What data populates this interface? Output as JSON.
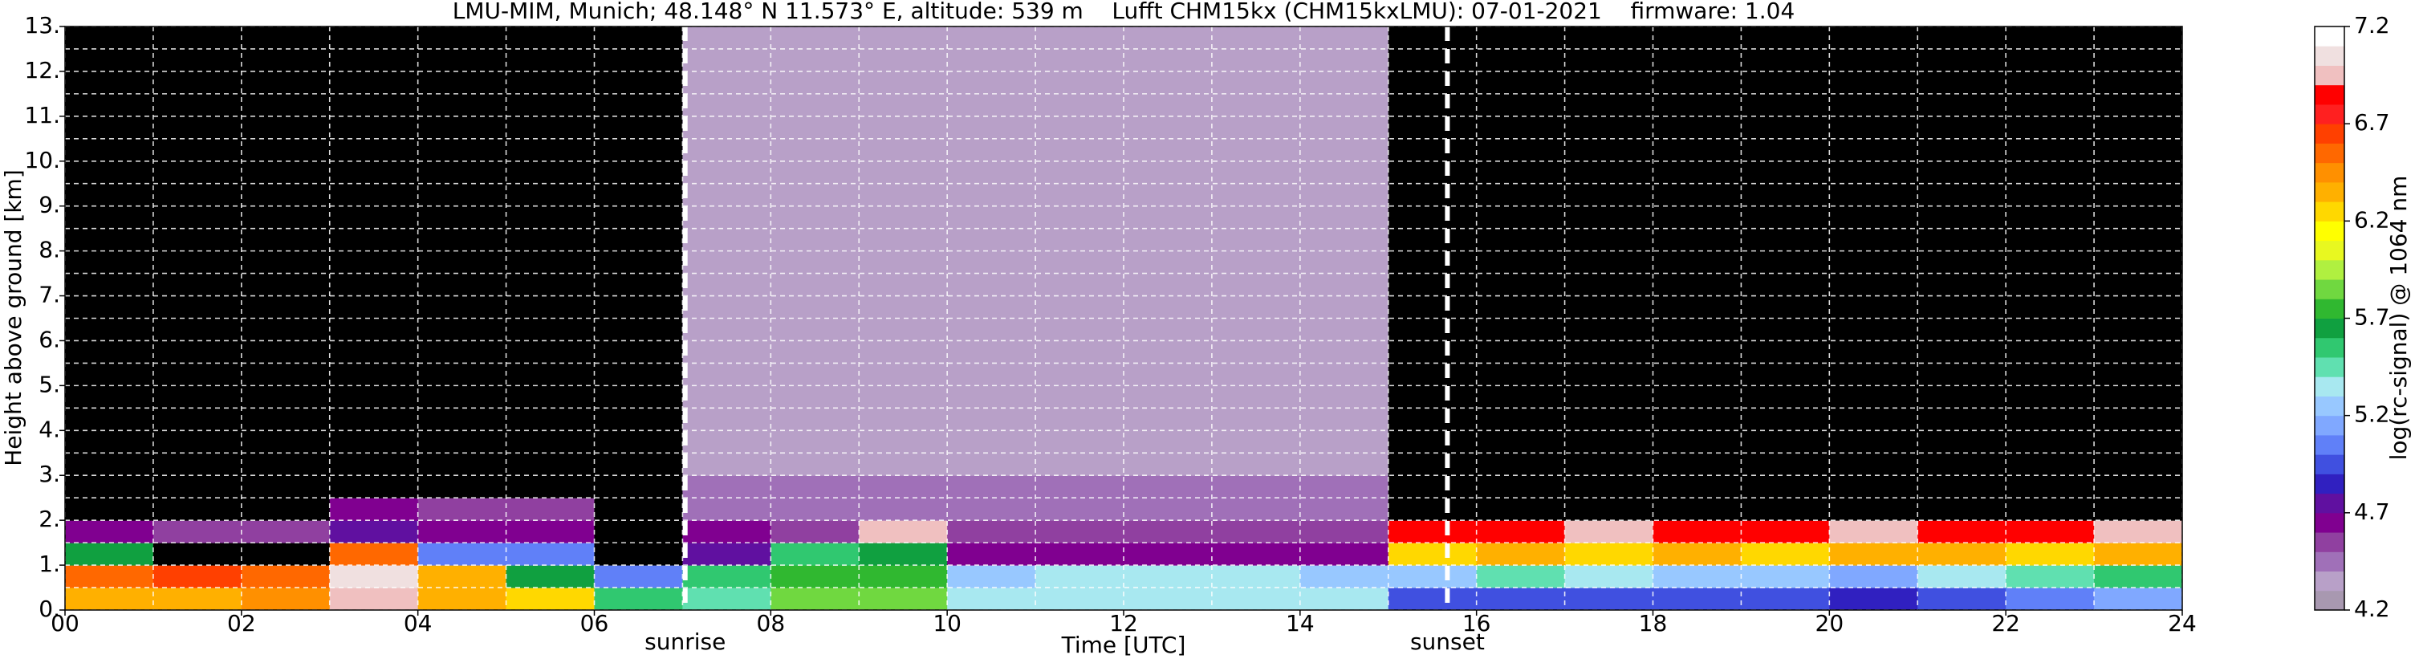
{
  "chart_data": {
    "type": "heatmap",
    "title": "LMU-MIM, Munich; 48.148° N 11.573° E, altitude: 539 m    Lufft CHM15kx (CHM15kxLMU): 07-01-2021    firmware: 1.04",
    "xlabel": "Time [UTC]",
    "ylabel": "Height above ground [km]",
    "colorbar_label": "log(rc-signal) @ 1064 nm",
    "xlim": [
      0,
      24
    ],
    "ylim": [
      0,
      13
    ],
    "xticks": [
      {
        "value": 0,
        "label": "00"
      },
      {
        "value": 2,
        "label": "02"
      },
      {
        "value": 4,
        "label": "04"
      },
      {
        "value": 6,
        "label": "06"
      },
      {
        "value": 8,
        "label": "08"
      },
      10,
      12,
      14,
      16,
      18,
      20,
      22,
      24
    ],
    "xminorticks": [
      1,
      3,
      5,
      7,
      9,
      11,
      13,
      15,
      17,
      19,
      21,
      23
    ],
    "yticks": [
      {
        "value": 0,
        "label": "0."
      },
      {
        "value": 1,
        "label": "1."
      },
      {
        "value": 2,
        "label": "2."
      },
      {
        "value": 3,
        "label": "3."
      },
      {
        "value": 4,
        "label": "4."
      },
      {
        "value": 5,
        "label": "5."
      },
      {
        "value": 6,
        "label": "6."
      },
      {
        "value": 7,
        "label": "7."
      },
      {
        "value": 8,
        "label": "8."
      },
      {
        "value": 9,
        "label": "9."
      },
      {
        "value": 10,
        "label": "10."
      },
      {
        "value": 11,
        "label": "11."
      },
      {
        "value": 12,
        "label": "12."
      },
      {
        "value": 13,
        "label": "13."
      }
    ],
    "yminorticks": [
      0.5,
      1.5,
      2.5,
      3.5,
      4.5,
      5.5,
      6.5,
      7.5,
      8.5,
      9.5,
      10.5,
      11.5,
      12.5
    ],
    "grid": true,
    "grid_color": "#ffffff",
    "clim": [
      4.2,
      7.2
    ],
    "cticks": [
      4.2,
      4.7,
      5.2,
      5.7,
      6.2,
      6.7,
      7.2
    ],
    "under_color": "#000000",
    "colors": [
      "#a898b0",
      "#b8a0c8",
      "#a070b8",
      "#9040a0",
      "#800090",
      "#6010a0",
      "#3020c0",
      "#4050e0",
      "#6080f8",
      "#80a8ff",
      "#98c8ff",
      "#a8e8f0",
      "#60e0b0",
      "#30c870",
      "#10a040",
      "#30b830",
      "#70d840",
      "#b0f040",
      "#e8f820",
      "#ffff00",
      "#ffd800",
      "#ffb000",
      "#ff9000",
      "#ff6800",
      "#ff4000",
      "#ff2020",
      "#ff0000",
      "#f0c0c0",
      "#f0e0e0",
      "#ffffff"
    ],
    "xbins": [
      0,
      1,
      2,
      3,
      4,
      5,
      6,
      7,
      8,
      9,
      10,
      11,
      12,
      13,
      14,
      15,
      16,
      17,
      18,
      19,
      20,
      21,
      22,
      23,
      24
    ],
    "ybins": [
      0,
      0.5,
      1,
      1.5,
      2,
      2.5,
      3,
      4,
      6,
      8,
      10,
      13
    ],
    "z": [
      [
        6.3,
        6.3,
        6.4,
        6.9,
        6.3,
        6.2,
        5.5,
        5.4,
        5.8,
        5.8,
        5.3,
        5.3,
        5.3,
        5.3,
        5.3,
        4.9,
        4.9,
        4.9,
        4.9,
        4.9,
        4.8,
        4.9,
        5.0,
        5.1
      ],
      [
        6.5,
        6.6,
        6.5,
        7.0,
        6.3,
        5.6,
        5.0,
        5.5,
        5.7,
        5.7,
        5.2,
        5.3,
        5.3,
        5.3,
        5.2,
        5.2,
        5.4,
        5.3,
        5.2,
        5.2,
        5.1,
        5.3,
        5.4,
        5.5
      ],
      [
        5.6,
        4.0,
        4.0,
        6.5,
        5.0,
        5.0,
        4.0,
        4.7,
        5.5,
        5.6,
        4.6,
        4.6,
        4.6,
        4.6,
        4.6,
        6.2,
        6.3,
        6.2,
        6.3,
        6.2,
        6.3,
        6.3,
        6.2,
        6.3
      ],
      [
        4.6,
        4.5,
        4.5,
        4.7,
        4.6,
        4.6,
        4.0,
        4.6,
        4.5,
        6.9,
        4.5,
        4.5,
        4.5,
        4.5,
        4.5,
        6.8,
        6.8,
        6.9,
        6.8,
        6.8,
        6.9,
        6.8,
        6.8,
        6.9
      ],
      [
        4.0,
        4.0,
        4.0,
        4.6,
        4.5,
        4.5,
        4.0,
        4.4,
        4.4,
        4.4,
        4.4,
        4.4,
        4.4,
        4.4,
        4.4,
        4.0,
        4.0,
        4.0,
        4.0,
        4.0,
        4.0,
        4.0,
        4.0,
        4.0
      ],
      [
        3.9,
        3.9,
        3.9,
        3.9,
        3.9,
        3.9,
        4.0,
        4.4,
        4.4,
        4.4,
        4.4,
        4.4,
        4.4,
        4.4,
        4.4,
        3.9,
        3.9,
        3.9,
        3.9,
        3.9,
        3.9,
        3.9,
        3.9,
        3.9
      ],
      [
        3.9,
        3.9,
        3.9,
        3.9,
        3.9,
        3.9,
        4.0,
        4.3,
        4.3,
        4.3,
        4.3,
        4.3,
        4.3,
        4.3,
        4.3,
        3.9,
        3.9,
        3.9,
        3.9,
        3.9,
        3.9,
        3.9,
        3.9,
        3.9
      ],
      [
        3.9,
        3.9,
        3.9,
        3.9,
        3.9,
        3.9,
        4.0,
        4.3,
        4.3,
        4.3,
        4.3,
        4.3,
        4.3,
        4.3,
        4.3,
        3.9,
        3.9,
        3.9,
        3.9,
        3.9,
        3.9,
        3.9,
        3.9,
        3.9
      ],
      [
        3.9,
        3.9,
        3.9,
        3.9,
        3.9,
        3.9,
        4.0,
        4.3,
        4.3,
        4.3,
        4.3,
        4.3,
        4.3,
        4.3,
        4.3,
        3.9,
        3.9,
        3.9,
        3.9,
        3.9,
        3.9,
        3.9,
        3.9,
        3.9
      ],
      [
        3.9,
        3.9,
        3.9,
        3.9,
        3.9,
        3.9,
        4.0,
        4.3,
        4.3,
        4.3,
        4.3,
        4.3,
        4.3,
        4.3,
        4.3,
        3.9,
        3.9,
        3.9,
        3.9,
        3.9,
        3.9,
        3.9,
        3.9,
        3.9
      ],
      [
        3.9,
        3.9,
        3.9,
        3.9,
        3.9,
        3.9,
        4.0,
        4.3,
        4.3,
        4.3,
        4.3,
        4.3,
        4.3,
        4.3,
        4.3,
        3.9,
        3.9,
        3.9,
        3.9,
        3.9,
        3.9,
        3.9,
        3.9,
        3.9
      ]
    ],
    "vlines": [
      {
        "x": 7.03,
        "label": "sunrise"
      },
      {
        "x": 15.67,
        "label": "sunset"
      }
    ],
    "vline_color": "#ffffff"
  }
}
